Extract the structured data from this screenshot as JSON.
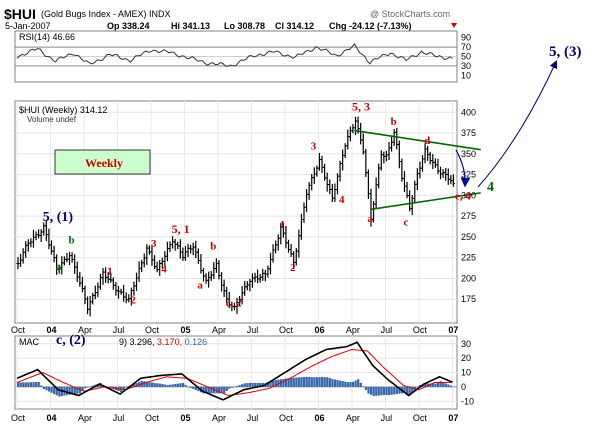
{
  "header": {
    "symbol": "$HUI",
    "name": "(Gold Bugs Index - AMEX) INDX",
    "date": "5-Jan-2007",
    "open": "Op 338.24",
    "high": "Hi 341.13",
    "low": "Lo 308.78",
    "close": "Cl 314.12",
    "change": "Chg -24.12 (-7.13%)",
    "watermark": "@ StockCharts.com",
    "change_marker_color": "#cc0000"
  },
  "rsi": {
    "label": "RSI(14) 46.66",
    "ticks": [
      "90",
      "70",
      "50",
      "30",
      "10"
    ],
    "tick_values": [
      90,
      70,
      50,
      30,
      10
    ],
    "band_lines": [
      70,
      30
    ],
    "ylim": [
      0,
      100
    ],
    "line_color": "#333333"
  },
  "main": {
    "label": "$HUI (Weekly) 314.12",
    "volume_label": "Volume undef",
    "weekly_box": "Weekly",
    "ticks": [
      "400",
      "375",
      "350",
      "325",
      "300",
      "275",
      "250",
      "225",
      "200",
      "175"
    ],
    "tick_values": [
      400,
      375,
      350,
      325,
      300,
      275,
      250,
      225,
      200,
      175
    ],
    "ylim": [
      150,
      410
    ],
    "bar_color": "#000000"
  },
  "macd": {
    "label_prefix": "MAC",
    "label_suffix": "9) 3.296,",
    "signal_value": "3.170,",
    "hist_value": "0.126",
    "ticks": [
      "30",
      "20",
      "10",
      "0",
      "-10"
    ],
    "tick_values": [
      30,
      20,
      10,
      0,
      -10
    ],
    "ylim": [
      -14,
      34
    ],
    "macd_color": "#000000",
    "signal_color": "#dd0000",
    "hist_color": "#3366aa"
  },
  "x_axis": {
    "labels": [
      "Oct",
      "04",
      "Apr",
      "Jul",
      "Oct",
      "05",
      "Apr",
      "Jul",
      "Oct",
      "06",
      "Apr",
      "Jul",
      "Oct",
      "07"
    ],
    "bold": [
      false,
      true,
      false,
      false,
      false,
      true,
      false,
      false,
      false,
      true,
      false,
      false,
      false,
      true
    ],
    "positions": [
      0,
      13,
      26,
      39,
      52,
      65,
      78,
      91,
      104,
      117,
      130,
      143,
      156,
      169
    ]
  },
  "annotations": [
    {
      "text": "5, (1)",
      "color": "#000066",
      "size": 14,
      "bold": true,
      "x": 10,
      "y": 269
    },
    {
      "text": "b",
      "color": "#006600",
      "size": 11,
      "bold": true,
      "x": 20,
      "y": 242
    },
    {
      "text": "a",
      "color": "#006600",
      "size": 11,
      "bold": true,
      "x": 15,
      "y": 210
    },
    {
      "text": "1",
      "color": "#cc0000",
      "size": 11,
      "bold": true,
      "x": 35,
      "y": 205
    },
    {
      "text": "2",
      "color": "#cc0000",
      "size": 11,
      "bold": true,
      "x": 44,
      "y": 170
    },
    {
      "text": "3",
      "color": "#cc0000",
      "size": 11,
      "bold": true,
      "x": 52,
      "y": 238
    },
    {
      "text": "4",
      "color": "#cc0000",
      "size": 11,
      "bold": true,
      "x": 56,
      "y": 207
    },
    {
      "text": "5, 1",
      "color": "#cc0000",
      "size": 12,
      "bold": true,
      "x": 60,
      "y": 255
    },
    {
      "text": "b",
      "color": "#cc0000",
      "size": 11,
      "bold": true,
      "x": 75,
      "y": 235
    },
    {
      "text": "a",
      "color": "#cc0000",
      "size": 11,
      "bold": true,
      "x": 70,
      "y": 188
    },
    {
      "text": "c, 2",
      "color": "#cc0000",
      "size": 11,
      "bold": true,
      "x": 81,
      "y": 166
    },
    {
      "text": "1",
      "color": "#cc0000",
      "size": 11,
      "bold": true,
      "x": 102,
      "y": 261
    },
    {
      "text": "2",
      "color": "#cc0000",
      "size": 11,
      "bold": true,
      "x": 106,
      "y": 209
    },
    {
      "text": "3",
      "color": "#cc0000",
      "size": 11,
      "bold": true,
      "x": 114,
      "y": 355
    },
    {
      "text": "4",
      "color": "#cc0000",
      "size": 11,
      "bold": true,
      "x": 125,
      "y": 291
    },
    {
      "text": "5, 3",
      "color": "#cc0000",
      "size": 12,
      "bold": true,
      "x": 130,
      "y": 402
    },
    {
      "text": "b",
      "color": "#cc0000",
      "size": 11,
      "bold": true,
      "x": 145,
      "y": 385
    },
    {
      "text": "a",
      "color": "#cc0000",
      "size": 11,
      "bold": true,
      "x": 136,
      "y": 268
    },
    {
      "text": "c",
      "color": "#cc0000",
      "size": 11,
      "bold": true,
      "x": 150,
      "y": 264
    },
    {
      "text": "d",
      "color": "#cc0000",
      "size": 11,
      "bold": true,
      "x": 158,
      "y": 362
    },
    {
      "text": "e, 4",
      "color": "#cc0000",
      "size": 11,
      "bold": true,
      "x": 170,
      "y": 295
    }
  ],
  "outside_labels": {
    "c2": "c, (2)",
    "w4": "4",
    "w53": "5, (3)",
    "c2_color": "#000066",
    "w4_color": "#006600",
    "w53_color": "#000066"
  },
  "chart_data": {
    "type": "ohlc",
    "title": "$HUI (Gold Bugs Index - AMEX) INDX",
    "subtitle": "Weekly",
    "x_tick_labels": [
      "Oct",
      "04",
      "Apr",
      "Jul",
      "Oct",
      "05",
      "Apr",
      "Jul",
      "Oct",
      "06",
      "Apr",
      "Jul",
      "Oct",
      "07"
    ],
    "x_tick_index": [
      0,
      13,
      26,
      39,
      52,
      65,
      78,
      91,
      104,
      117,
      130,
      143,
      156,
      169
    ],
    "ylim": [
      150,
      410
    ],
    "anchors": [
      [
        0,
        218
      ],
      [
        4,
        242
      ],
      [
        10,
        262
      ],
      [
        15,
        211
      ],
      [
        20,
        230
      ],
      [
        27,
        166
      ],
      [
        33,
        205
      ],
      [
        37,
        192
      ],
      [
        43,
        173
      ],
      [
        50,
        238
      ],
      [
        54,
        208
      ],
      [
        60,
        248
      ],
      [
        64,
        226
      ],
      [
        68,
        240
      ],
      [
        73,
        195
      ],
      [
        77,
        215
      ],
      [
        81,
        175
      ],
      [
        84,
        163
      ],
      [
        90,
        200
      ],
      [
        96,
        203
      ],
      [
        102,
        262
      ],
      [
        107,
        217
      ],
      [
        112,
        305
      ],
      [
        117,
        340
      ],
      [
        122,
        298
      ],
      [
        127,
        360
      ],
      [
        131,
        392
      ],
      [
        134,
        355
      ],
      [
        137,
        270
      ],
      [
        141,
        352
      ],
      [
        143,
        348
      ],
      [
        146,
        375
      ],
      [
        149,
        322
      ],
      [
        152,
        287
      ],
      [
        155,
        325
      ],
      [
        158,
        352
      ],
      [
        163,
        332
      ],
      [
        169,
        314
      ]
    ],
    "close_last": 314.12,
    "rsi_anchors": [
      [
        0,
        50
      ],
      [
        8,
        66
      ],
      [
        15,
        40
      ],
      [
        22,
        58
      ],
      [
        28,
        33
      ],
      [
        36,
        54
      ],
      [
        44,
        42
      ],
      [
        52,
        64
      ],
      [
        60,
        58
      ],
      [
        66,
        48
      ],
      [
        74,
        36
      ],
      [
        83,
        30
      ],
      [
        92,
        52
      ],
      [
        100,
        60
      ],
      [
        108,
        48
      ],
      [
        116,
        70
      ],
      [
        124,
        52
      ],
      [
        131,
        72
      ],
      [
        137,
        38
      ],
      [
        145,
        58
      ],
      [
        151,
        42
      ],
      [
        157,
        60
      ],
      [
        163,
        50
      ],
      [
        169,
        46.66
      ]
    ],
    "macd_anchors": [
      [
        0,
        6
      ],
      [
        8,
        12
      ],
      [
        16,
        -2
      ],
      [
        24,
        -6
      ],
      [
        32,
        2
      ],
      [
        40,
        -5
      ],
      [
        48,
        6
      ],
      [
        56,
        8
      ],
      [
        64,
        9
      ],
      [
        72,
        -3
      ],
      [
        80,
        -9
      ],
      [
        88,
        -2
      ],
      [
        96,
        1
      ],
      [
        104,
        10
      ],
      [
        112,
        19
      ],
      [
        120,
        26
      ],
      [
        128,
        28
      ],
      [
        132,
        31
      ],
      [
        138,
        15
      ],
      [
        144,
        5
      ],
      [
        152,
        -6
      ],
      [
        158,
        2
      ],
      [
        164,
        7
      ],
      [
        169,
        3.296
      ]
    ],
    "signal_anchors": [
      [
        0,
        3
      ],
      [
        10,
        10
      ],
      [
        18,
        3
      ],
      [
        26,
        -3
      ],
      [
        34,
        0
      ],
      [
        42,
        -2
      ],
      [
        50,
        3
      ],
      [
        58,
        7
      ],
      [
        66,
        6
      ],
      [
        74,
        0
      ],
      [
        82,
        -6
      ],
      [
        90,
        -4
      ],
      [
        98,
        -1
      ],
      [
        106,
        6
      ],
      [
        114,
        14
      ],
      [
        122,
        21
      ],
      [
        130,
        26
      ],
      [
        136,
        25
      ],
      [
        142,
        14
      ],
      [
        150,
        1
      ],
      [
        156,
        -2
      ],
      [
        162,
        3
      ],
      [
        169,
        3.17
      ]
    ],
    "trendlines": [
      {
        "from": [
          131,
          378
        ],
        "to": [
          180,
          355
        ],
        "color": "#006600"
      },
      {
        "from": [
          137,
          283
        ],
        "to": [
          180,
          303
        ],
        "color": "#006600"
      }
    ]
  }
}
